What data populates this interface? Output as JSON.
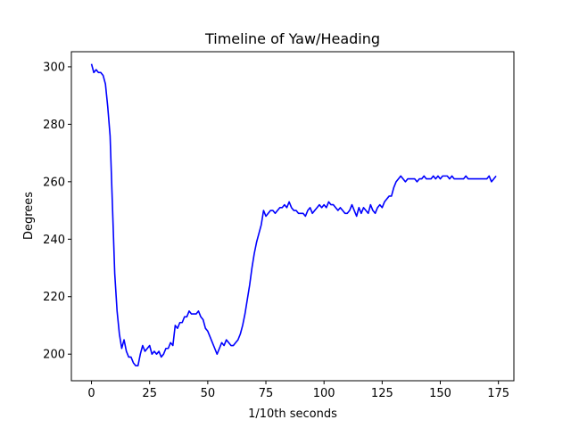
{
  "chart_data": {
    "type": "line",
    "title": "Timeline of Yaw/Heading",
    "xlabel": "1/10th seconds",
    "ylabel": "Degrees",
    "xlim": [
      -8.65,
      181.65
    ],
    "ylim": [
      190.75,
      305.25
    ],
    "xticks": [
      0,
      25,
      50,
      75,
      100,
      125,
      150,
      175
    ],
    "yticks": [
      200,
      220,
      240,
      260,
      280,
      300
    ],
    "grid": false,
    "legend": "none",
    "series": [
      {
        "color": "#0000ff",
        "values": [
          301,
          298,
          299,
          298,
          298,
          297,
          294,
          286,
          276,
          252,
          228,
          215,
          207,
          202,
          205,
          201,
          199,
          199,
          197,
          196,
          196,
          200,
          203,
          201,
          202,
          203,
          200,
          201,
          200,
          201,
          199,
          200,
          202,
          202,
          204,
          203,
          210,
          209,
          211,
          211,
          213,
          213,
          215,
          214,
          214,
          214,
          215,
          213,
          212,
          209,
          208,
          206,
          204,
          202,
          200,
          202,
          204,
          203,
          205,
          204,
          203,
          203,
          204,
          205,
          207,
          210,
          214,
          219,
          224,
          230,
          235,
          239,
          242,
          245,
          250,
          248,
          249,
          250,
          250,
          249,
          250,
          251,
          251,
          252,
          251,
          253,
          251,
          250,
          250,
          249,
          249,
          249,
          248,
          250,
          251,
          249,
          250,
          251,
          252,
          251,
          252,
          251,
          253,
          252,
          252,
          251,
          250,
          251,
          250,
          249,
          249,
          250,
          252,
          250,
          248,
          251,
          249,
          251,
          250,
          249,
          252,
          250,
          249,
          251,
          252,
          251,
          253,
          254,
          255,
          255,
          258,
          260,
          261,
          262,
          261,
          260,
          261,
          261,
          261,
          261,
          260,
          261,
          261,
          262,
          261,
          261,
          261,
          262,
          261,
          262,
          261,
          262,
          262,
          262,
          261,
          262,
          261,
          261,
          261,
          261,
          261,
          262,
          261,
          261,
          261,
          261,
          261,
          261,
          261,
          261,
          261,
          262,
          260,
          261,
          262
        ]
      }
    ]
  }
}
